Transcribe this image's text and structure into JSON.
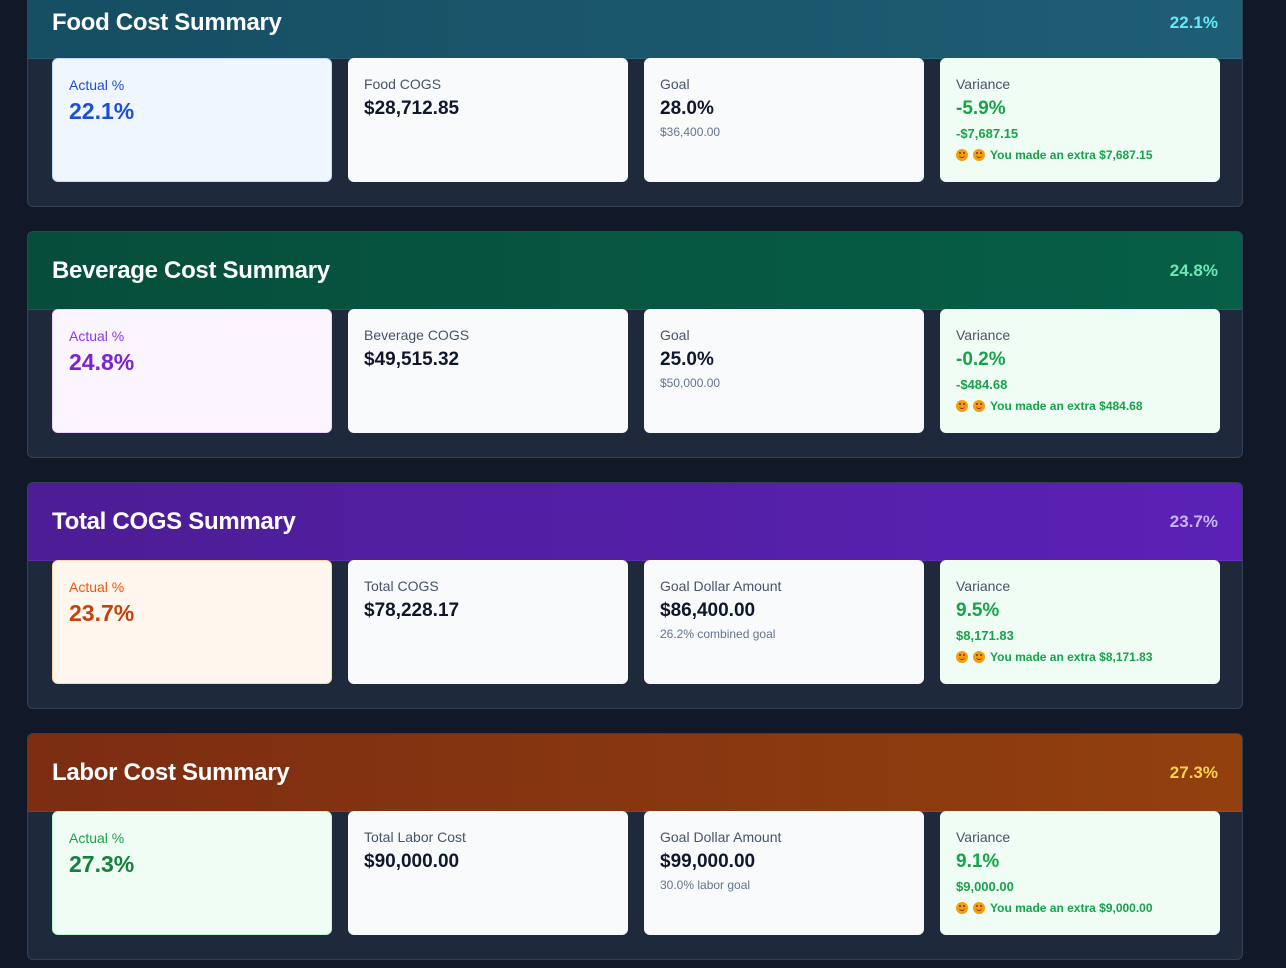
{
  "sections": [
    {
      "title": "Food Cost Summary",
      "header_pct": "22.1%",
      "colors": {
        "header_from": "#164e63",
        "header_to": "#1e5e75",
        "pct": "#67e8f9",
        "actual_bg": "#eff6ff",
        "actual_label": "#1d4ed8",
        "actual_value": "#1d4ed8",
        "actual_border": "#bfdbfe"
      },
      "actual": {
        "label": "Actual %",
        "value": "22.1%"
      },
      "cogs": {
        "label": "Food COGS",
        "value": "$28,712.85"
      },
      "goal": {
        "label": "Goal",
        "value": "28.0%",
        "sub": "$36,400.00"
      },
      "variance": {
        "label": "Variance",
        "value": "-5.9%",
        "amount": "-$7,687.15",
        "message": "You made an extra $7,687.15"
      }
    },
    {
      "title": "Beverage Cost Summary",
      "header_pct": "24.8%",
      "colors": {
        "header_from": "#064e3b",
        "header_to": "#065f46",
        "pct": "#6ee7b7",
        "actual_bg": "#faf5ff",
        "actual_label": "#9333ea",
        "actual_value": "#7e22ce",
        "actual_border": "#e9d5ff"
      },
      "actual": {
        "label": "Actual %",
        "value": "24.8%"
      },
      "cogs": {
        "label": "Beverage COGS",
        "value": "$49,515.32"
      },
      "goal": {
        "label": "Goal",
        "value": "25.0%",
        "sub": "$50,000.00"
      },
      "variance": {
        "label": "Variance",
        "value": "-0.2%",
        "amount": "-$484.68",
        "message": "You made an extra $484.68"
      }
    },
    {
      "title": "Total COGS Summary",
      "header_pct": "23.7%",
      "colors": {
        "header_from": "#4c1d95",
        "header_to": "#5b21b6",
        "pct": "#c4b5fd",
        "actual_bg": "#fff7ed",
        "actual_label": "#ea580c",
        "actual_value": "#c2410c",
        "actual_border": "#fed7aa"
      },
      "actual": {
        "label": "Actual %",
        "value": "23.7%"
      },
      "cogs": {
        "label": "Total COGS",
        "value": "$78,228.17"
      },
      "goal": {
        "label": "Goal Dollar Amount",
        "value": "$86,400.00",
        "sub": "26.2% combined goal"
      },
      "variance": {
        "label": "Variance",
        "value": "9.5%",
        "amount": "$8,171.83",
        "message": "You made an extra $8,171.83"
      }
    },
    {
      "title": "Labor Cost Summary",
      "header_pct": "27.3%",
      "colors": {
        "header_from": "#7c2d12",
        "header_to": "#92400e",
        "pct": "#fcd34d",
        "actual_bg": "#f0fdf4",
        "actual_label": "#16a34a",
        "actual_value": "#15803d",
        "actual_border": "#bbf7d0"
      },
      "actual": {
        "label": "Actual %",
        "value": "27.3%"
      },
      "cogs": {
        "label": "Total Labor Cost",
        "value": "$90,000.00"
      },
      "goal": {
        "label": "Goal Dollar Amount",
        "value": "$99,000.00",
        "sub": "30.0% labor goal"
      },
      "variance": {
        "label": "Variance",
        "value": "9.1%",
        "amount": "$9,000.00",
        "message": "You made an extra $9,000.00"
      }
    }
  ]
}
